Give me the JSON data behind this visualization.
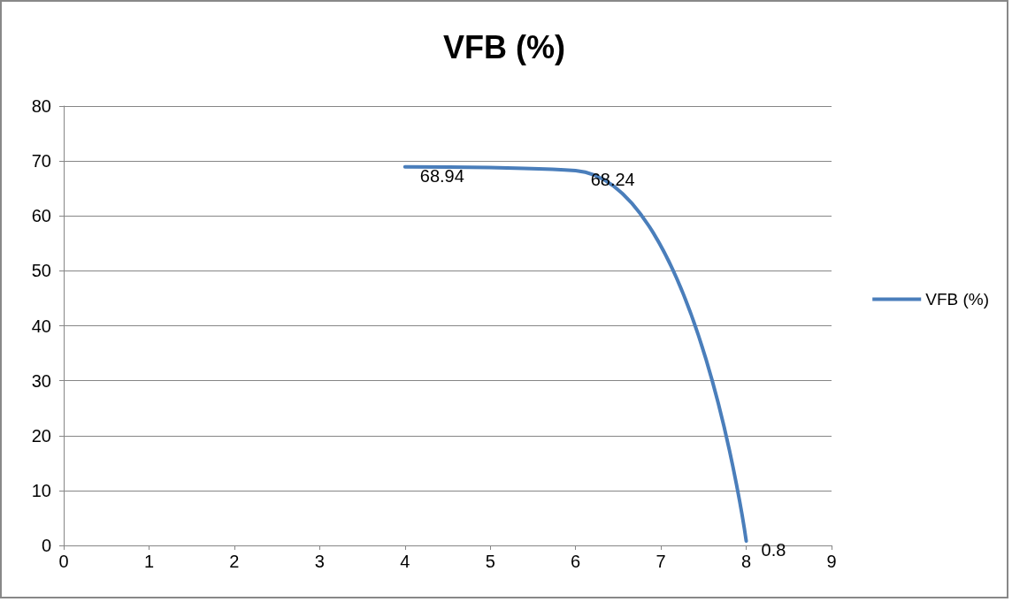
{
  "chart_data": {
    "type": "line",
    "title": "VFB (%)",
    "x": [
      4,
      6,
      8
    ],
    "series": [
      {
        "name": "VFB (%)",
        "color": "#4a7ebb",
        "values": [
          68.94,
          68.24,
          0.8
        ]
      }
    ],
    "xlim": [
      0,
      9
    ],
    "xticks": [
      0,
      1,
      2,
      3,
      4,
      5,
      6,
      7,
      8,
      9
    ],
    "ylim": [
      0,
      80
    ],
    "yticks": [
      0,
      10,
      20,
      30,
      40,
      50,
      60,
      70,
      80
    ],
    "grid": "y",
    "legend": "right",
    "marker": "none",
    "line_style": "solid",
    "data_labels": true
  }
}
